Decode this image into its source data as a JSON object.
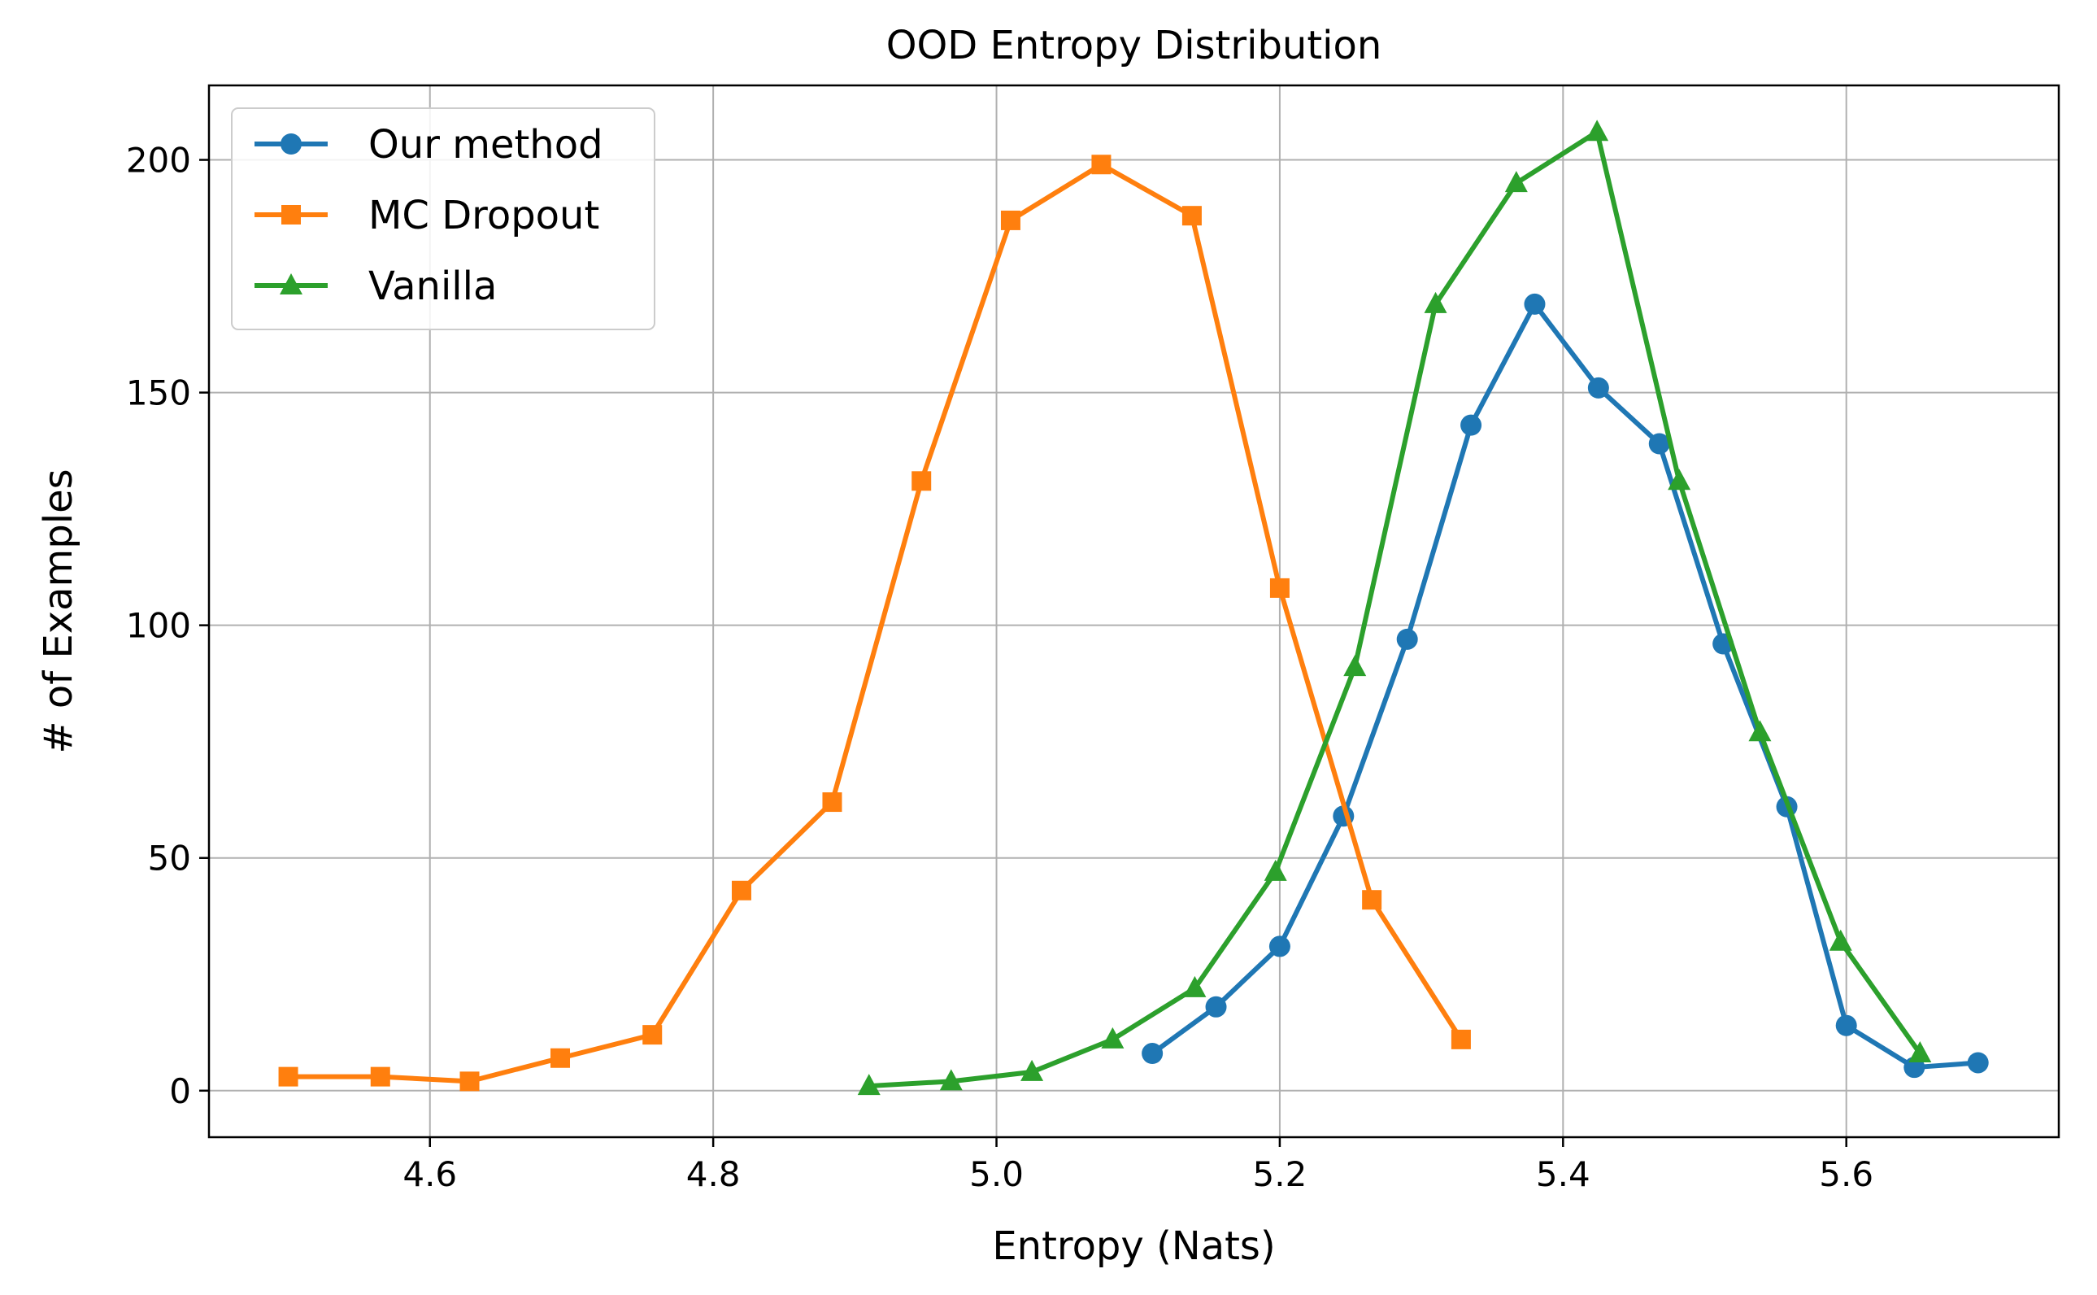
{
  "chart_data": {
    "type": "line",
    "title": "OOD Entropy Distribution",
    "xlabel": "Entropy (Nats)",
    "ylabel": "# of Examples",
    "xlim": [
      4.444,
      5.75
    ],
    "ylim": [
      -10,
      216
    ],
    "xticks": [
      4.6,
      4.8,
      5.0,
      5.2,
      5.4,
      5.6
    ],
    "xtick_labels": [
      "4.6",
      "4.8",
      "5.0",
      "5.2",
      "5.4",
      "5.6"
    ],
    "yticks": [
      0,
      50,
      100,
      150,
      200
    ],
    "ytick_labels": [
      "0",
      "50",
      "100",
      "150",
      "200"
    ],
    "grid": true,
    "legend_position": "top-left",
    "series": [
      {
        "name": "Our method",
        "color": "#1f77b4",
        "marker": "circle",
        "x": [
          5.11,
          5.155,
          5.2,
          5.245,
          5.29,
          5.335,
          5.38,
          5.425,
          5.468,
          5.513,
          5.558,
          5.6,
          5.648,
          5.693
        ],
        "y": [
          8,
          18,
          31,
          59,
          97,
          143,
          169,
          151,
          139,
          96,
          61,
          14,
          5,
          6
        ]
      },
      {
        "name": "MC Dropout",
        "color": "#ff7f0e",
        "marker": "square",
        "x": [
          4.5,
          4.565,
          4.628,
          4.692,
          4.757,
          4.82,
          4.884,
          4.947,
          5.01,
          5.074,
          5.138,
          5.2,
          5.265,
          5.328
        ],
        "y": [
          3,
          3,
          2,
          7,
          12,
          43,
          62,
          131,
          187,
          199,
          188,
          108,
          41,
          11
        ]
      },
      {
        "name": "Vanilla",
        "color": "#2ca02c",
        "marker": "triangle",
        "x": [
          4.91,
          4.968,
          5.025,
          5.082,
          5.14,
          5.197,
          5.253,
          5.31,
          5.367,
          5.424,
          5.482,
          5.539,
          5.596,
          5.652
        ],
        "y": [
          1,
          2,
          4,
          11,
          22,
          47,
          91,
          169,
          195,
          206,
          131,
          77,
          32,
          8
        ]
      }
    ]
  }
}
